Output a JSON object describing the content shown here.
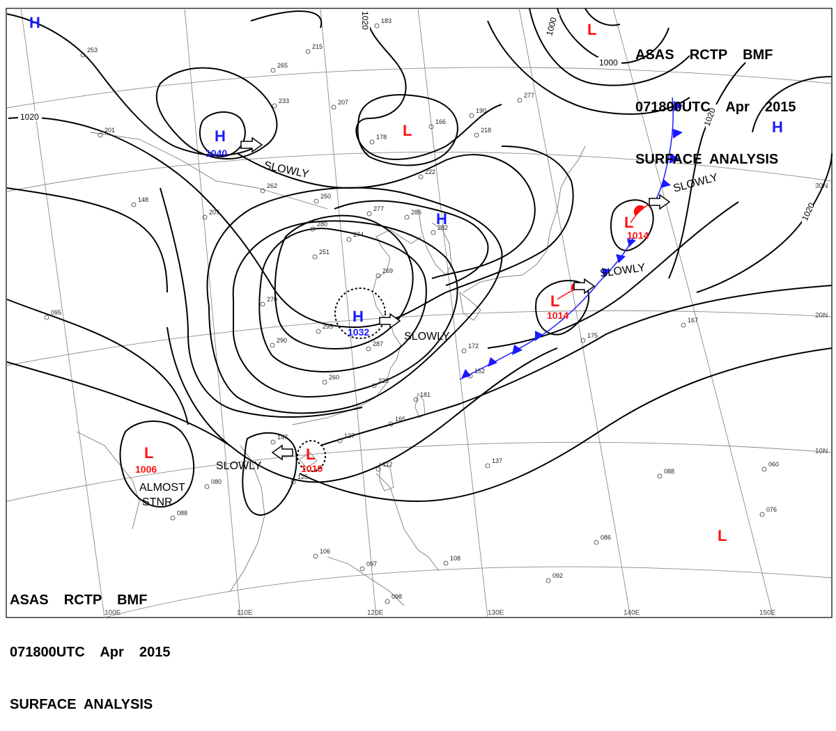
{
  "header": {
    "line1": "ASAS    RCTP    BMF",
    "line2": "071800UTC    Apr    2015",
    "line3": "SURFACE  ANALYSIS"
  },
  "colors": {
    "high": "#1a1aff",
    "low": "#ff1010",
    "isobar": "#000000",
    "grid": "#888888",
    "coast": "#777777"
  },
  "grid_labels": {
    "lon": [
      "100E",
      "110E",
      "120E",
      "130E",
      "140E",
      "150E"
    ],
    "lat": [
      "30N",
      "20N",
      "10N"
    ]
  },
  "isobar_labels": [
    "1020",
    "1020",
    "1000",
    "1000",
    "1020",
    "1020"
  ],
  "pressure_centers": [
    {
      "type": "H",
      "value": ""
    },
    {
      "type": "H",
      "value": "1040"
    },
    {
      "type": "H",
      "value": ""
    },
    {
      "type": "H",
      "value": "1032"
    },
    {
      "type": "H",
      "value": ""
    },
    {
      "type": "L",
      "value": ""
    },
    {
      "type": "L",
      "value": ""
    },
    {
      "type": "L",
      "value": "1014"
    },
    {
      "type": "L",
      "value": "1014"
    },
    {
      "type": "L",
      "value": "1006"
    },
    {
      "type": "L",
      "value": "1010"
    },
    {
      "type": "L",
      "value": ""
    }
  ],
  "movement_labels": [
    "SLOWLY",
    "SLOWLY",
    "SLOWLY",
    "SLOWLY",
    "SLOWLY"
  ],
  "stationary_note": [
    "ALMOST",
    "STNR"
  ],
  "station_pressures": [
    "183",
    "253",
    "215",
    "265",
    "233",
    "207",
    "166",
    "190",
    "178",
    "218",
    "277",
    "201",
    "262",
    "250",
    "222",
    "148",
    "207",
    "280",
    "277",
    "286",
    "282",
    "251",
    "274",
    "269",
    "270",
    "295",
    "290",
    "287",
    "260",
    "225",
    "181",
    "165",
    "172",
    "152",
    "147",
    "127",
    "125",
    "080",
    "112",
    "137",
    "088",
    "060",
    "076",
    "086",
    "092",
    "098",
    "097",
    "106",
    "108",
    "175",
    "088",
    "095",
    "167"
  ]
}
